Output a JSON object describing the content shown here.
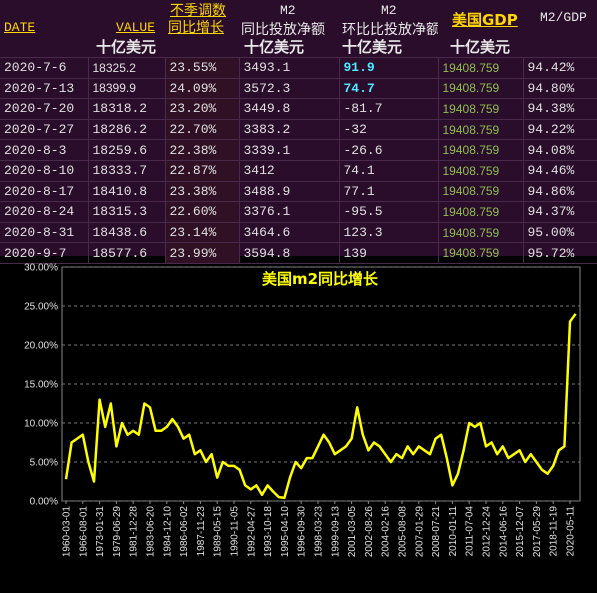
{
  "table": {
    "columns": [
      {
        "label": "DATE"
      },
      {
        "label": "VALUE",
        "unit": "十亿美元"
      },
      {
        "label": "不季调数",
        "sublabel": "同比增长"
      },
      {
        "label": "M2",
        "sublabel": "同比投放净额",
        "unit": "十亿美元"
      },
      {
        "label": "M2",
        "sublabel": "环比比投放净额",
        "unit": "十亿美元"
      },
      {
        "label": "美国GDP",
        "unit": "十亿美元"
      },
      {
        "label": "M2/GDP"
      }
    ],
    "rows": [
      [
        "2020-7-6",
        "18325.2",
        "23.55%",
        "3493.1",
        "91.9",
        "19408.759",
        "94.42%"
      ],
      [
        "2020-7-13",
        "18399.9",
        "24.09%",
        "3572.3",
        "74.7",
        "19408.759",
        "94.80%"
      ],
      [
        "2020-7-20",
        "18318.2",
        "23.20%",
        "3449.8",
        "-81.7",
        "19408.759",
        "94.38%"
      ],
      [
        "2020-7-27",
        "18286.2",
        "22.70%",
        "3383.2",
        "-32",
        "19408.759",
        "94.22%"
      ],
      [
        "2020-8-3",
        "18259.6",
        "22.38%",
        "3339.1",
        "-26.6",
        "19408.759",
        "94.08%"
      ],
      [
        "2020-8-10",
        "18333.7",
        "22.87%",
        "3412",
        "74.1",
        "19408.759",
        "94.46%"
      ],
      [
        "2020-8-17",
        "18410.8",
        "23.38%",
        "3488.9",
        "77.1",
        "19408.759",
        "94.86%"
      ],
      [
        "2020-8-24",
        "18315.3",
        "22.60%",
        "3376.1",
        "-95.5",
        "19408.759",
        "94.37%"
      ],
      [
        "2020-8-31",
        "18438.6",
        "23.14%",
        "3464.6",
        "123.3",
        "19408.759",
        "95.00%"
      ],
      [
        "2020-9-7",
        "18577.6",
        "23.99%",
        "3594.8",
        "139",
        "19408.759",
        "95.72%"
      ]
    ]
  },
  "chart_data": {
    "type": "line",
    "title": "美国m2同比增长",
    "categories": [
      "1960-03-01",
      null,
      null,
      "1966-08-01",
      null,
      null,
      "1973-01-31",
      null,
      null,
      "1979-06-29",
      null,
      null,
      "1981-12-28",
      null,
      null,
      "1983-06-20",
      null,
      null,
      "1984-12-10",
      null,
      null,
      "1986-06-02",
      null,
      null,
      "1987-11-23",
      null,
      null,
      "1989-05-15",
      null,
      null,
      "1990-11-05",
      null,
      null,
      "1992-04-27",
      null,
      null,
      "1993-10-18",
      null,
      null,
      "1995-04-10",
      null,
      null,
      "1996-09-30",
      null,
      null,
      "1998-03-23",
      null,
      null,
      "1999-09-13",
      null,
      null,
      "2001-03-05",
      null,
      null,
      "2002-08-26",
      null,
      null,
      "2004-02-16",
      null,
      null,
      "2005-08-08",
      null,
      null,
      "2007-01-29",
      null,
      null,
      "2008-07-21",
      null,
      null,
      "2010-01-11",
      null,
      null,
      "2011-07-04",
      null,
      null,
      "2012-12-24",
      null,
      null,
      "2014-06-16",
      null,
      null,
      "2015-12-07",
      null,
      null,
      "2017-05-29",
      null,
      null,
      "2018-11-19",
      null,
      null,
      "2020-05-11",
      null
    ],
    "series": [
      {
        "color": "#ffff00",
        "values": [
          2.8,
          7.5,
          8,
          8.5,
          5,
          2.5,
          13,
          9.5,
          12.5,
          7,
          10,
          8.5,
          9,
          8.5,
          12.5,
          12,
          9,
          9,
          9.5,
          10.5,
          9.5,
          8,
          8.5,
          6,
          6.5,
          5,
          6,
          3,
          5,
          4.5,
          4.5,
          4,
          2,
          1.5,
          2,
          0.8,
          2,
          1.2,
          0.5,
          0.4,
          3,
          5,
          4.2,
          5.5,
          5.5,
          7,
          8.5,
          7.5,
          6,
          6.5,
          7,
          8,
          12,
          8.5,
          6.5,
          7.5,
          7,
          6,
          5,
          6,
          5.5,
          7,
          6,
          7,
          6.5,
          6,
          8,
          8.5,
          5.5,
          2,
          3.5,
          6.5,
          10,
          9.5,
          10,
          7,
          7.5,
          6,
          7,
          5.5,
          6,
          6.5,
          5,
          6,
          5,
          4,
          3.5,
          4.5,
          6.5,
          7,
          23,
          24
        ]
      }
    ],
    "ylim": [
      0,
      30
    ],
    "yticks": [
      {
        "value": 0,
        "label": "0.00%"
      },
      {
        "value": 5,
        "label": "5.00%"
      },
      {
        "value": 10,
        "label": "10.00%"
      },
      {
        "value": 15,
        "label": "15.00%"
      },
      {
        "value": 20,
        "label": "20.00%"
      },
      {
        "value": 25,
        "label": "25.00%"
      },
      {
        "value": 30,
        "label": "30.00%"
      }
    ],
    "grid": true
  }
}
